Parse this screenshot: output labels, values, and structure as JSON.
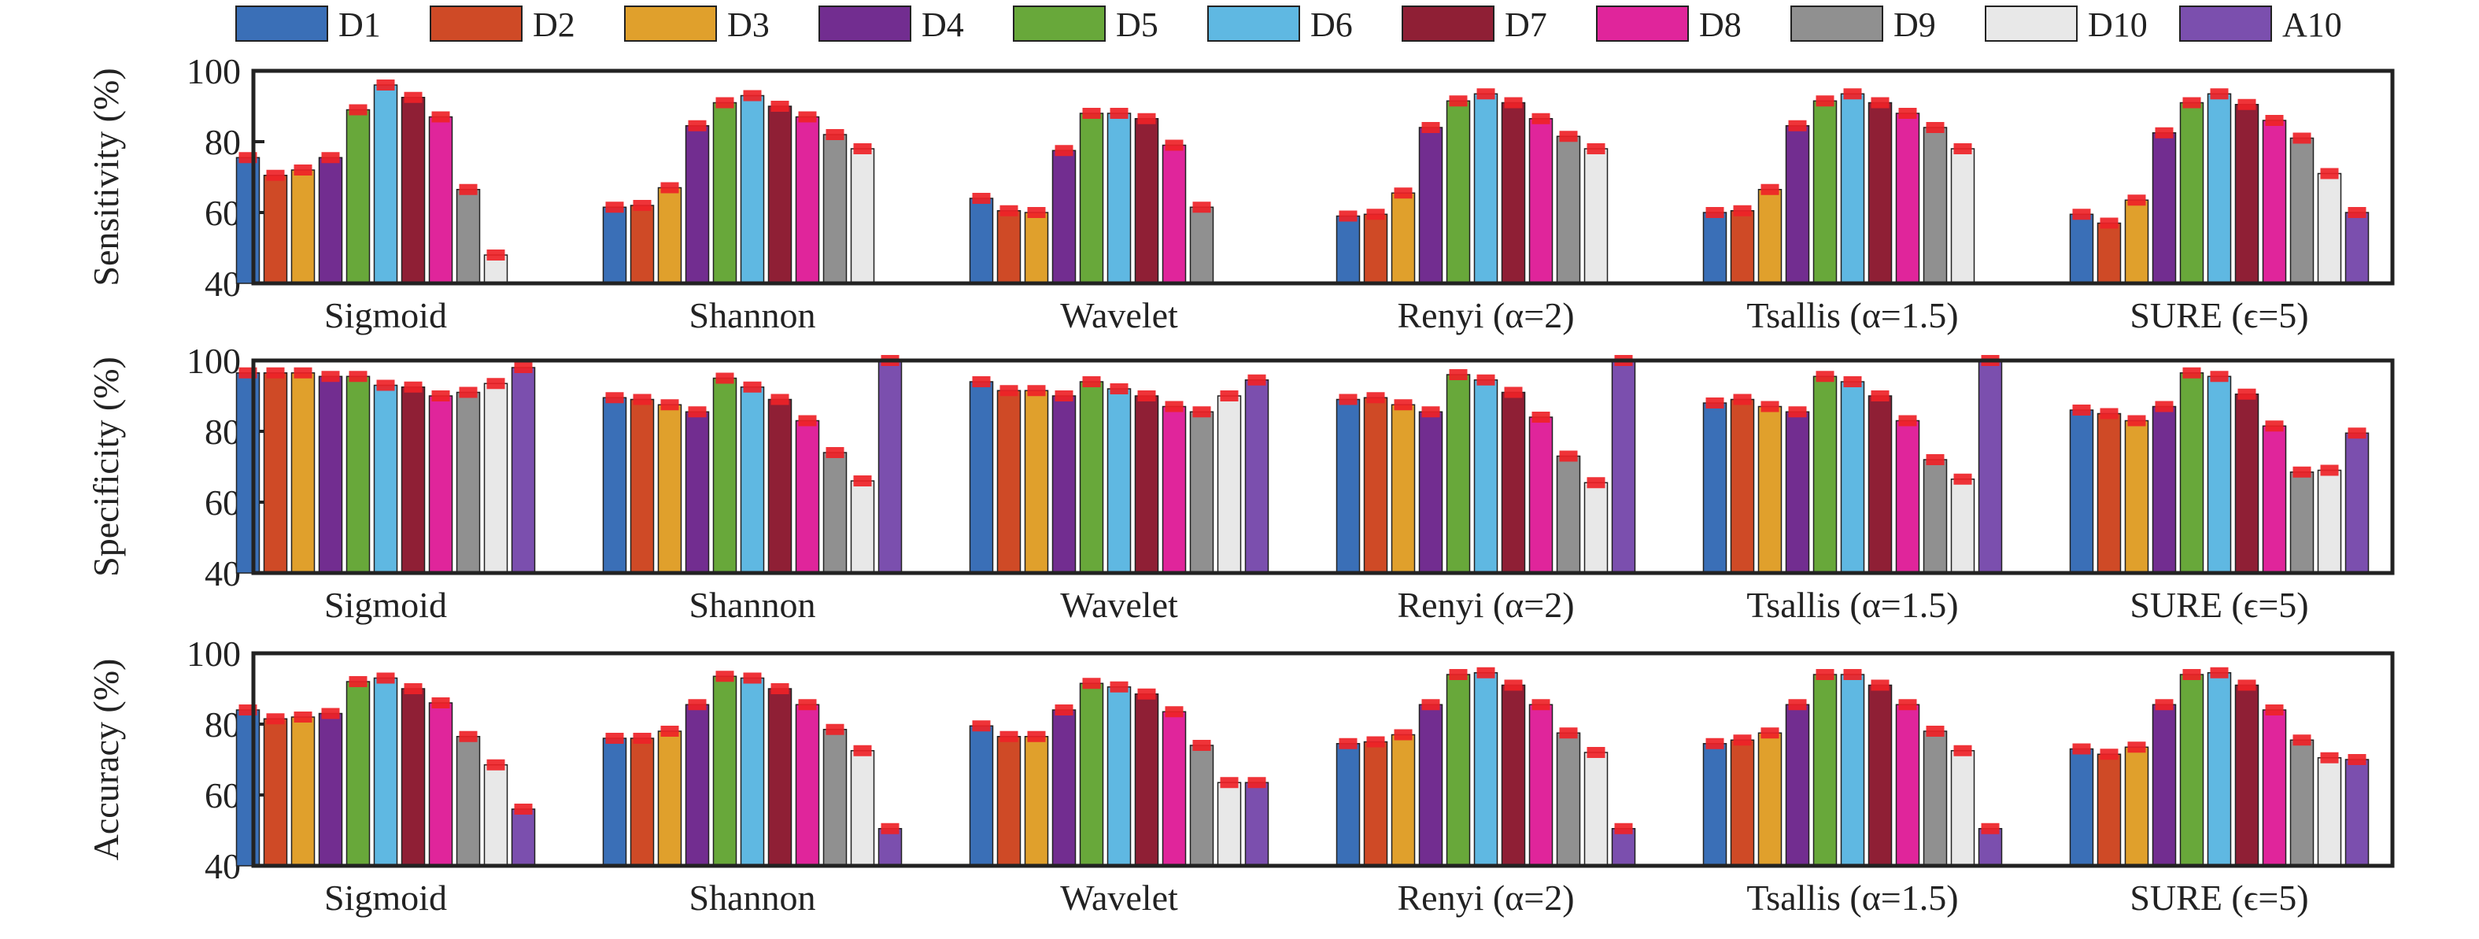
{
  "legend": [
    {
      "name": "D1",
      "color": "#3a6fb7"
    },
    {
      "name": "D2",
      "color": "#cf4a26"
    },
    {
      "name": "D3",
      "color": "#e0a02c"
    },
    {
      "name": "D4",
      "color": "#722d90"
    },
    {
      "name": "D5",
      "color": "#68a83a"
    },
    {
      "name": "D6",
      "color": "#5fb8e2"
    },
    {
      "name": "D7",
      "color": "#8f1f35"
    },
    {
      "name": "D8",
      "color": "#e0259b"
    },
    {
      "name": "D9",
      "color": "#909090"
    },
    {
      "name": "D10",
      "color": "#e8e8e8"
    },
    {
      "name": "A10",
      "color": "#7b4fae"
    }
  ],
  "error_color": "#ee2227",
  "chart_data": [
    {
      "type": "bar",
      "ylabel": "Sensitivity (%)",
      "ylim": [
        40,
        100
      ],
      "yticks": [
        40,
        60,
        80,
        100
      ],
      "categories": [
        "Sigmoid",
        "Shannon",
        "Wavelet",
        "Renyi (α=2)",
        "Tsallis (α=1.5)",
        "SURE (ϵ=5)"
      ],
      "values": [
        [
          75.5,
          70.5,
          72,
          75.5,
          89,
          96,
          92.5,
          87,
          66.5,
          48,
          null
        ],
        [
          61.5,
          62,
          67,
          84.5,
          91,
          93,
          90,
          87,
          82,
          78,
          null
        ],
        [
          64,
          60.5,
          60,
          77.5,
          88,
          88,
          86.5,
          79,
          61.5,
          null,
          null
        ],
        [
          59,
          59.5,
          65.5,
          84,
          91.5,
          93.5,
          91,
          86.5,
          81.5,
          78,
          null
        ],
        [
          60,
          60.5,
          66.5,
          84.5,
          91.5,
          93.5,
          91,
          88,
          84,
          78,
          null
        ],
        [
          59.5,
          57,
          63.5,
          82.5,
          91,
          93.5,
          90.5,
          86,
          81,
          71,
          60
        ]
      ]
    },
    {
      "type": "bar",
      "ylabel": "Specificity (%)",
      "ylim": [
        40,
        100
      ],
      "yticks": [
        40,
        60,
        80,
        100
      ],
      "categories": [
        "Sigmoid",
        "Shannon",
        "Wavelet",
        "Renyi (α=2)",
        "Tsallis (α=1.5)",
        "SURE (ϵ=5)"
      ],
      "values": [
        [
          96.5,
          96.5,
          96.5,
          95.5,
          95.5,
          93,
          92.5,
          90,
          91,
          93.5,
          98
        ],
        [
          89.5,
          89,
          87.5,
          85.5,
          95,
          92.5,
          89,
          83,
          74,
          66,
          100
        ],
        [
          94,
          91.5,
          91.5,
          90,
          94,
          92,
          90,
          87,
          85.5,
          90,
          94.5
        ],
        [
          89,
          89.5,
          87.5,
          85.5,
          96,
          94.5,
          91,
          84,
          73,
          65.5,
          100
        ],
        [
          88,
          89,
          87,
          85.5,
          95.5,
          94,
          90,
          83,
          72,
          66.5,
          100
        ],
        [
          86,
          85,
          83,
          87,
          96.5,
          95.5,
          90.5,
          81.5,
          68.5,
          69,
          79.5
        ]
      ]
    },
    {
      "type": "bar",
      "ylabel": "Accuracy (%)",
      "ylim": [
        40,
        100
      ],
      "yticks": [
        40,
        60,
        80,
        100
      ],
      "categories": [
        "Sigmoid",
        "Shannon",
        "Wavelet",
        "Renyi (α=2)",
        "Tsallis (α=1.5)",
        "SURE (ϵ=5)"
      ],
      "values": [
        [
          84,
          81.5,
          82,
          83,
          92,
          93,
          90,
          86,
          76.5,
          68.5,
          56
        ],
        [
          76,
          76,
          78,
          85.5,
          93.5,
          93,
          90,
          85.5,
          78.5,
          72.5,
          50.5
        ],
        [
          79.5,
          76.5,
          76.5,
          84,
          91.5,
          90.5,
          88.5,
          83.5,
          74,
          63.5,
          63.5
        ],
        [
          74.5,
          75,
          77,
          85.5,
          94,
          94.5,
          91,
          85.5,
          77.5,
          72,
          50.5
        ],
        [
          74.5,
          75.5,
          77.5,
          85.5,
          94,
          94,
          91,
          85.5,
          78,
          72.5,
          50.5
        ],
        [
          73,
          71.5,
          73.5,
          85.5,
          94,
          94.5,
          91,
          84,
          75.5,
          70.5,
          70
        ]
      ]
    }
  ]
}
